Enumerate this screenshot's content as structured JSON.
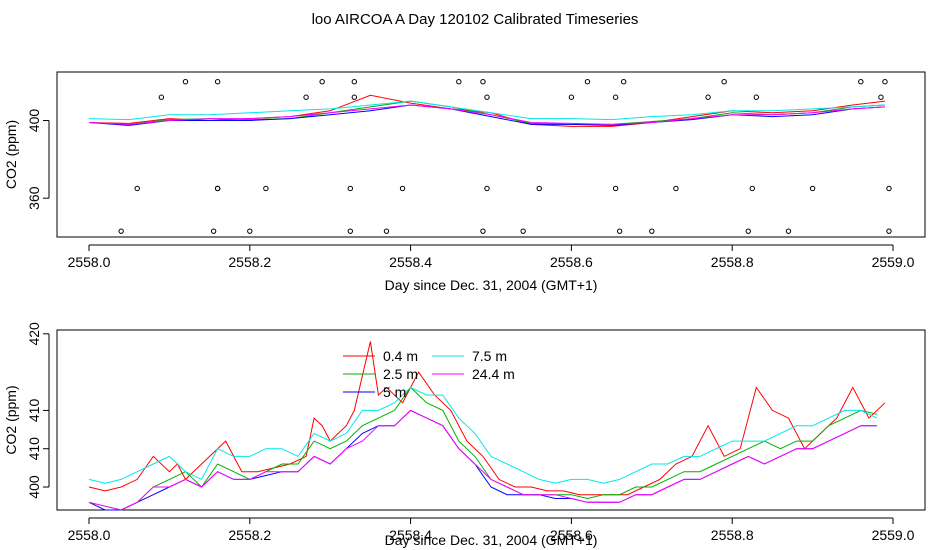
{
  "title": "loo AIRCOA A  Day 120102  Calibrated Timeseries",
  "colors": {
    "0.4 m": "#ff0000",
    "2.5 m": "#00b000",
    "5 m": "#0000ff",
    "7.5 m": "#00e8e8",
    "24.4 m": "#ff00ff"
  },
  "chart_data": [
    {
      "type": "line",
      "xlabel": "Day since Dec. 31, 2004 (GMT+1)",
      "ylabel": "CO2 (ppm)",
      "xlim": [
        2558.0,
        2559.0
      ],
      "ylim": [
        340,
        425
      ],
      "x_ticks": [
        "2558.0",
        "2558.2",
        "2558.4",
        "2558.6",
        "2558.8",
        "2559.0"
      ],
      "y_ticks": [
        "360",
        "400"
      ],
      "grid": false,
      "legend": null,
      "series": [
        {
          "name": "0.4 m",
          "x": [
            2558.0,
            2558.05,
            2558.1,
            2558.15,
            2558.2,
            2558.25,
            2558.3,
            2558.35,
            2558.4,
            2558.45,
            2558.5,
            2558.55,
            2558.6,
            2558.65,
            2558.7,
            2558.75,
            2558.8,
            2558.85,
            2558.9,
            2558.95,
            2558.99
          ],
          "values": [
            399,
            398.5,
            401,
            400,
            401,
            402,
            405,
            413,
            409,
            406,
            404,
            398,
            397,
            397,
            399,
            402,
            405,
            404,
            405,
            408,
            410
          ]
        },
        {
          "name": "2.5 m",
          "x": [
            2558.0,
            2558.05,
            2558.1,
            2558.15,
            2558.2,
            2558.25,
            2558.3,
            2558.35,
            2558.4,
            2558.45,
            2558.5,
            2558.55,
            2558.6,
            2558.65,
            2558.7,
            2558.75,
            2558.8,
            2558.85,
            2558.9,
            2558.95,
            2558.99
          ],
          "values": [
            399,
            398,
            400.5,
            401,
            400.5,
            401,
            404,
            407,
            410,
            407,
            403,
            398.5,
            398,
            398,
            399.5,
            401,
            404,
            403,
            404,
            407,
            408
          ]
        },
        {
          "name": "5 m",
          "x": [
            2558.0,
            2558.05,
            2558.1,
            2558.15,
            2558.2,
            2558.25,
            2558.3,
            2558.35,
            2558.4,
            2558.45,
            2558.5,
            2558.55,
            2558.6,
            2558.65,
            2558.7,
            2558.75,
            2558.8,
            2558.85,
            2558.9,
            2558.95,
            2558.99
          ],
          "values": [
            399,
            397.5,
            400,
            400,
            400,
            401,
            403,
            405,
            408,
            406,
            402,
            398,
            398,
            397.5,
            399,
            400.5,
            403,
            402,
            403,
            406,
            407
          ]
        },
        {
          "name": "7.5 m",
          "x": [
            2558.0,
            2558.05,
            2558.1,
            2558.15,
            2558.2,
            2558.25,
            2558.3,
            2558.35,
            2558.4,
            2558.45,
            2558.5,
            2558.55,
            2558.6,
            2558.65,
            2558.7,
            2558.75,
            2558.8,
            2558.85,
            2558.9,
            2558.95,
            2558.99
          ],
          "values": [
            401,
            400.5,
            403,
            403,
            404,
            405,
            406,
            408,
            410,
            407,
            404,
            401,
            401,
            400.5,
            402,
            403,
            405,
            405,
            406,
            407,
            408
          ]
        },
        {
          "name": "24.4 m",
          "x": [
            2558.0,
            2558.05,
            2558.1,
            2558.15,
            2558.2,
            2558.25,
            2558.3,
            2558.35,
            2558.4,
            2558.45,
            2558.5,
            2558.55,
            2558.6,
            2558.65,
            2558.7,
            2558.75,
            2558.8,
            2558.85,
            2558.9,
            2558.95,
            2558.99
          ],
          "values": [
            399,
            398,
            400,
            401,
            401,
            402,
            404,
            406,
            408,
            406,
            403,
            399,
            398.5,
            398,
            399,
            401,
            403,
            403,
            404,
            406,
            407
          ]
        }
      ],
      "flag_points": {
        "x": [
          2558.04,
          2558.06,
          2558.09,
          2558.12,
          2558.155,
          2558.16,
          2558.16,
          2558.16,
          2558.2,
          2558.22,
          2558.27,
          2558.29,
          2558.325,
          2558.325,
          2558.33,
          2558.33,
          2558.37,
          2558.39,
          2558.46,
          2558.49,
          2558.49,
          2558.495,
          2558.495,
          2558.54,
          2558.56,
          2558.6,
          2558.62,
          2558.655,
          2558.655,
          2558.66,
          2558.665,
          2558.7,
          2558.73,
          2558.77,
          2558.79,
          2558.82,
          2558.825,
          2558.83,
          2558.87,
          2558.9,
          2558.96,
          2558.985,
          2558.99,
          2558.995,
          2558.995
        ],
        "values": [
          343,
          365,
          412,
          420,
          343,
          365,
          420,
          365,
          343,
          365,
          412,
          420,
          365,
          343,
          420,
          412,
          343,
          365,
          420,
          343,
          420,
          365,
          412,
          343,
          365,
          412,
          420,
          365,
          412,
          343,
          420,
          343,
          365,
          412,
          420,
          343,
          365,
          412,
          343,
          365,
          420,
          412,
          420,
          365,
          343
        ]
      }
    },
    {
      "type": "line",
      "xlabel": "Day since Dec. 31, 2004 (GMT+1)",
      "ylabel": "CO2 (ppm)",
      "xlim": [
        2558.0,
        2559.0
      ],
      "ylim": [
        397,
        420.5
      ],
      "x_ticks": [
        "2558.0",
        "2558.2",
        "2558.4",
        "2558.6",
        "2558.8",
        "2559.0"
      ],
      "y_ticks": [
        "400",
        "410",
        "410",
        "420"
      ],
      "grid": false,
      "legend": "top-center",
      "series": [
        {
          "name": "0.4 m",
          "x": [
            2558.0,
            2558.02,
            2558.04,
            2558.06,
            2558.08,
            2558.1,
            2558.11,
            2558.12,
            2558.14,
            2558.15,
            2558.17,
            2558.19,
            2558.21,
            2558.23,
            2558.25,
            2558.27,
            2558.28,
            2558.29,
            2558.3,
            2558.32,
            2558.33,
            2558.35,
            2558.36,
            2558.37,
            2558.39,
            2558.41,
            2558.43,
            2558.45,
            2558.47,
            2558.49,
            2558.51,
            2558.53,
            2558.55,
            2558.57,
            2558.59,
            2558.61,
            2558.63,
            2558.65,
            2558.67,
            2558.69,
            2558.71,
            2558.73,
            2558.75,
            2558.77,
            2558.79,
            2558.81,
            2558.83,
            2558.85,
            2558.87,
            2558.89,
            2558.91,
            2558.93,
            2558.95,
            2558.97,
            2558.99
          ],
          "values": [
            400,
            399.5,
            400,
            401,
            404,
            402,
            403,
            401,
            403,
            404,
            406,
            402,
            402,
            402.5,
            403,
            404,
            409,
            408,
            406,
            408,
            410,
            419,
            412,
            413,
            411,
            415,
            412,
            410,
            406,
            404,
            401,
            400,
            400,
            399.5,
            399.5,
            399,
            399,
            399,
            399,
            400,
            401,
            403,
            404,
            408,
            404,
            405,
            413,
            410,
            409,
            405,
            407,
            409,
            413,
            409,
            411
          ]
        },
        {
          "name": "2.5 m",
          "x": [
            2558.0,
            2558.02,
            2558.04,
            2558.06,
            2558.08,
            2558.1,
            2558.12,
            2558.14,
            2558.16,
            2558.18,
            2558.2,
            2558.22,
            2558.24,
            2558.26,
            2558.28,
            2558.3,
            2558.32,
            2558.34,
            2558.36,
            2558.38,
            2558.4,
            2558.42,
            2558.44,
            2558.46,
            2558.48,
            2558.5,
            2558.52,
            2558.54,
            2558.56,
            2558.58,
            2558.6,
            2558.62,
            2558.64,
            2558.66,
            2558.68,
            2558.7,
            2558.72,
            2558.74,
            2558.76,
            2558.78,
            2558.8,
            2558.82,
            2558.84,
            2558.86,
            2558.88,
            2558.9,
            2558.92,
            2558.94,
            2558.96,
            2558.98
          ],
          "values": [
            398,
            397.5,
            397,
            398,
            400,
            401,
            402,
            400,
            403,
            402,
            401,
            402,
            403,
            403,
            406,
            405,
            406,
            408,
            409,
            410,
            413,
            411,
            410,
            406,
            404,
            401,
            400,
            399,
            399,
            399,
            399,
            398.5,
            399,
            399,
            400,
            400,
            401,
            402,
            402,
            403,
            404,
            405,
            406,
            405,
            406,
            406,
            408,
            409,
            410,
            409.5
          ]
        },
        {
          "name": "5 m",
          "x": [
            2558.0,
            2558.02,
            2558.04,
            2558.06,
            2558.08,
            2558.1,
            2558.12,
            2558.14,
            2558.16,
            2558.18,
            2558.2,
            2558.22,
            2558.24,
            2558.26,
            2558.28,
            2558.3,
            2558.32,
            2558.34,
            2558.36,
            2558.38,
            2558.4,
            2558.42,
            2558.44,
            2558.46,
            2558.48,
            2558.5,
            2558.52,
            2558.54,
            2558.56,
            2558.58,
            2558.6,
            2558.62,
            2558.64,
            2558.66,
            2558.68,
            2558.7,
            2558.72,
            2558.74,
            2558.76,
            2558.78,
            2558.8,
            2558.82,
            2558.84,
            2558.86,
            2558.88,
            2558.9,
            2558.92,
            2558.94,
            2558.96,
            2558.98
          ],
          "values": [
            398,
            397,
            397,
            398,
            399,
            400,
            401,
            400,
            402,
            401,
            401,
            401.5,
            402,
            402,
            404,
            403,
            405,
            407,
            408,
            408,
            410,
            409,
            408,
            405,
            403,
            400,
            399,
            399,
            399,
            398.5,
            398.5,
            398,
            398,
            398,
            399,
            399,
            400,
            401,
            401,
            402,
            403,
            404,
            403,
            404,
            405,
            405,
            406,
            407,
            408,
            408
          ]
        },
        {
          "name": "7.5 m",
          "x": [
            2558.0,
            2558.02,
            2558.04,
            2558.06,
            2558.08,
            2558.1,
            2558.12,
            2558.14,
            2558.16,
            2558.18,
            2558.2,
            2558.22,
            2558.24,
            2558.26,
            2558.28,
            2558.3,
            2558.32,
            2558.34,
            2558.36,
            2558.38,
            2558.4,
            2558.42,
            2558.44,
            2558.46,
            2558.48,
            2558.5,
            2558.52,
            2558.54,
            2558.56,
            2558.58,
            2558.6,
            2558.62,
            2558.64,
            2558.66,
            2558.68,
            2558.7,
            2558.72,
            2558.74,
            2558.76,
            2558.78,
            2558.8,
            2558.82,
            2558.84,
            2558.86,
            2558.88,
            2558.9,
            2558.92,
            2558.94,
            2558.96,
            2558.98
          ],
          "values": [
            401,
            400.5,
            401,
            402,
            403,
            404,
            402,
            401,
            405,
            404,
            404,
            405,
            405,
            404,
            407,
            406,
            407,
            410,
            410,
            411,
            413,
            412,
            412,
            409,
            407,
            404,
            403,
            402,
            401,
            400.5,
            401,
            401,
            400.5,
            401,
            402,
            403,
            403,
            404,
            404,
            405,
            406,
            406,
            406,
            407,
            408,
            408,
            409,
            410,
            410,
            409
          ]
        },
        {
          "name": "24.4 m",
          "x": [
            2558.0,
            2558.02,
            2558.04,
            2558.06,
            2558.08,
            2558.1,
            2558.12,
            2558.14,
            2558.16,
            2558.18,
            2558.2,
            2558.22,
            2558.24,
            2558.26,
            2558.28,
            2558.3,
            2558.32,
            2558.34,
            2558.36,
            2558.38,
            2558.4,
            2558.42,
            2558.44,
            2558.46,
            2558.48,
            2558.5,
            2558.52,
            2558.54,
            2558.56,
            2558.58,
            2558.6,
            2558.62,
            2558.64,
            2558.66,
            2558.68,
            2558.7,
            2558.72,
            2558.74,
            2558.76,
            2558.78,
            2558.8,
            2558.82,
            2558.84,
            2558.86,
            2558.88,
            2558.9,
            2558.92,
            2558.94,
            2558.96,
            2558.98
          ],
          "values": [
            398,
            397.5,
            397,
            398,
            400,
            400,
            401,
            400,
            402,
            401,
            401,
            402,
            402,
            402,
            404,
            403,
            405,
            406,
            408,
            408,
            410,
            409,
            408,
            405,
            403,
            401,
            400,
            399,
            399,
            399,
            398.5,
            398,
            398,
            398,
            399,
            399,
            400,
            401,
            401,
            402,
            403,
            404,
            403,
            404,
            405,
            405,
            406,
            407,
            408,
            408
          ]
        }
      ]
    }
  ]
}
